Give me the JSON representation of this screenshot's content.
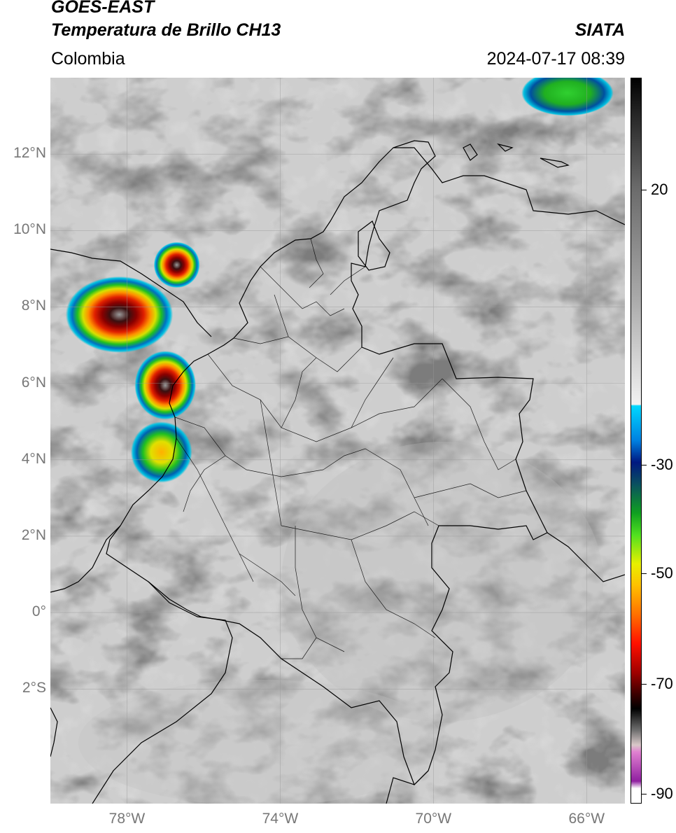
{
  "header": {
    "title_line1": "GOES-EAST",
    "title_line2": "Temperatura de Brillo CH13",
    "source": "SIATA",
    "region": "Colombia",
    "datetime": "2024-07-17 08:39"
  },
  "map": {
    "lon_range": [
      -80.0,
      -65.0
    ],
    "lat_range": [
      -5.0,
      14.0
    ],
    "lat_ticks": [
      {
        "value": 12,
        "label": "12°N"
      },
      {
        "value": 10,
        "label": "10°N"
      },
      {
        "value": 8,
        "label": "8°N"
      },
      {
        "value": 6,
        "label": "6°N"
      },
      {
        "value": 4,
        "label": "4°N"
      },
      {
        "value": 2,
        "label": "2°N"
      },
      {
        "value": 0,
        "label": "0°"
      },
      {
        "value": -2,
        "label": "2°S"
      }
    ],
    "lon_ticks": [
      {
        "value": -78,
        "label": "78°W"
      },
      {
        "value": -74,
        "label": "74°W"
      },
      {
        "value": -70,
        "label": "70°W"
      },
      {
        "value": -66,
        "label": "66°W"
      }
    ],
    "grid": true,
    "cold_cloud_cells": [
      {
        "lon": -78.2,
        "lat": 7.8,
        "rx": 1.4,
        "ry": 1.0,
        "min_temp": -80
      },
      {
        "lon": -76.7,
        "lat": 9.1,
        "rx": 0.6,
        "ry": 0.6,
        "min_temp": -75
      },
      {
        "lon": -77.0,
        "lat": 5.95,
        "rx": 0.8,
        "ry": 0.9,
        "min_temp": -78
      },
      {
        "lon": -77.1,
        "lat": 4.2,
        "rx": 0.8,
        "ry": 0.8,
        "min_temp": -65
      },
      {
        "lon": -66.5,
        "lat": 13.6,
        "rx": 1.2,
        "ry": 0.6,
        "min_temp": -45
      }
    ]
  },
  "colorbar": {
    "ticks": [
      {
        "value": 20,
        "label": "20"
      },
      {
        "value": -30,
        "label": "-30"
      },
      {
        "value": -50,
        "label": "-50"
      },
      {
        "value": -70,
        "label": "-70"
      },
      {
        "value": -90,
        "label": "-90"
      }
    ]
  }
}
